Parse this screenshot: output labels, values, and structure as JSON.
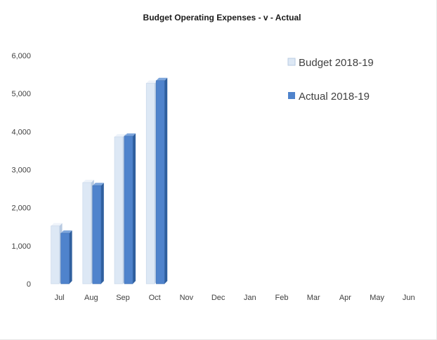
{
  "chart_data": {
    "type": "bar",
    "title": "Budget Operating Expenses - v - Actual",
    "categories": [
      "Jul",
      "Aug",
      "Sep",
      "Oct",
      "Nov",
      "Dec",
      "Jan",
      "Feb",
      "Mar",
      "Apr",
      "May",
      "Jun"
    ],
    "series": [
      {
        "name": "Budget 2018-19",
        "values": [
          1520,
          2660,
          3860,
          5270,
          null,
          null,
          null,
          null,
          null,
          null,
          null,
          null
        ]
      },
      {
        "name": "Actual 2018-19",
        "values": [
          1330,
          2580,
          3880,
          5340,
          null,
          null,
          null,
          null,
          null,
          null,
          null,
          null
        ]
      }
    ],
    "yticks": [
      "0",
      "1,000",
      "2,000",
      "3,000",
      "4,000",
      "5,000",
      "6,000"
    ],
    "ylim": [
      0,
      6000
    ],
    "grid": false,
    "legend_position": "top-right",
    "colors": {
      "budget": "#dde8f5",
      "budget_side": "#b9cbe2",
      "actual": "#4f83cc",
      "actual_side": "#2f5f9e"
    }
  }
}
